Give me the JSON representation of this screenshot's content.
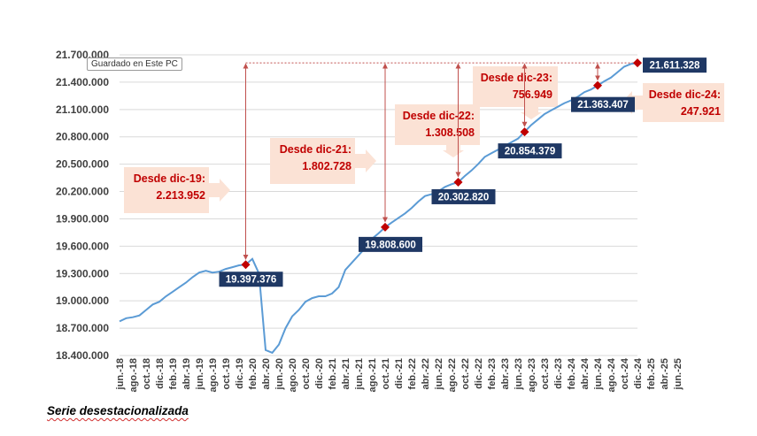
{
  "tooltip": "Guardado en Este PC",
  "footnote": "Serie desestacionalizada",
  "colors": {
    "line": "#5b9bd5",
    "marker": "#c00000",
    "arrow": "#c0504d",
    "value_box": "#1f3864",
    "callout_fill": "#fbe2d5",
    "callout_text": "#c00000"
  },
  "chart_data": {
    "type": "line",
    "title": "",
    "xlabel": "",
    "ylabel": "",
    "ylim": [
      18400000,
      21700000
    ],
    "yticks": [
      "18.400.000",
      "18.700.000",
      "19.000.000",
      "19.300.000",
      "19.600.000",
      "19.900.000",
      "20.200.000",
      "20.500.000",
      "20.800.000",
      "21.100.000",
      "21.400.000",
      "21.700.000"
    ],
    "xticks": [
      "jun.-18",
      "ago.-18",
      "oct.-18",
      "dic.-18",
      "feb.-19",
      "abr.-19",
      "jun.-19",
      "ago.-19",
      "oct.-19",
      "dic.-19",
      "feb.-20",
      "abr.-20",
      "jun.-20",
      "ago.-20",
      "oct.-20",
      "dic.-20",
      "feb.-21",
      "abr.-21",
      "jun.-21",
      "ago.-21",
      "oct.-21",
      "dic.-21",
      "feb.-22",
      "abr.-22",
      "jun.-22",
      "ago.-22",
      "oct.-22",
      "dic.-22",
      "feb.-23",
      "abr.-23",
      "jun.-23",
      "ago.-23",
      "oct.-23",
      "dic.-23",
      "feb.-24",
      "abr.-24",
      "jun.-24",
      "ago.-24",
      "oct.-24",
      "dic.-24",
      "feb.-25",
      "abr.-25",
      "jun.-25"
    ],
    "grid": true,
    "series": [
      {
        "values": [
          18775000,
          18810000,
          18820000,
          18840000,
          18900000,
          18960000,
          18990000,
          19050000,
          19100000,
          19150000,
          19200000,
          19260000,
          19310000,
          19330000,
          19310000,
          19320000,
          19350000,
          19370000,
          19390000,
          19397376,
          19460000,
          19300000,
          18460000,
          18430000,
          18520000,
          18700000,
          18830000,
          18900000,
          18990000,
          19030000,
          19050000,
          19050000,
          19080000,
          19150000,
          19340000,
          19420000,
          19500000,
          19580000,
          19680000,
          19740000,
          19808600,
          19860000,
          19910000,
          19960000,
          20020000,
          20090000,
          20150000,
          20170000,
          20200000,
          20250000,
          20280000,
          20302820,
          20370000,
          20430000,
          20500000,
          20580000,
          20620000,
          20660000,
          20700000,
          20740000,
          20780000,
          20854379,
          20930000,
          20990000,
          21050000,
          21090000,
          21130000,
          21170000,
          21200000,
          21240000,
          21290000,
          21320000,
          21363407,
          21410000,
          21450000,
          21510000,
          21570000,
          21600000,
          21611328
        ]
      }
    ],
    "markers": [
      {
        "index": 19,
        "label": "19.397.376"
      },
      {
        "index": 40,
        "label": "19.808.600"
      },
      {
        "index": 51,
        "label": "20.302.820"
      },
      {
        "index": 61,
        "label": "20.854.379"
      },
      {
        "index": 72,
        "label": "21.363.407"
      },
      {
        "index": 78,
        "label": "21.611.328"
      }
    ],
    "callouts": [
      {
        "line1": "Desde dic-19:",
        "line2": "2.213.952"
      },
      {
        "line1": "Desde dic-21:",
        "line2": "1.802.728"
      },
      {
        "line1": "Desde dic-22:",
        "line2": "1.308.508"
      },
      {
        "line1": "Desde dic-23:",
        "line2": "756.949"
      },
      {
        "line1": "Desde dic-24:",
        "line2": "247.921"
      }
    ]
  }
}
